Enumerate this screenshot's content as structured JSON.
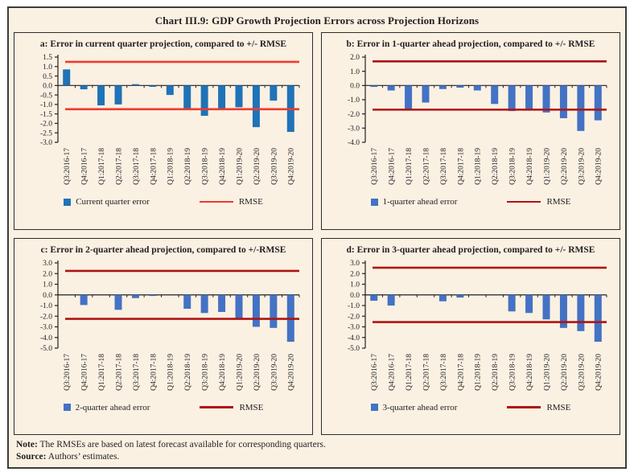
{
  "page_title": "Chart III.9: GDP Growth Projection Errors across Projection Horizons",
  "note": {
    "label": "Note:",
    "text": " The RMSEs are based on latest forecast available for corresponding quarters."
  },
  "source": {
    "label": "Source:",
    "text": " Authors’ estimates."
  },
  "colors": {
    "background": "#faf1e3",
    "outer_border": "#3c3c3c",
    "panel_border": "#2c2c2c",
    "text": "#231f20",
    "axis": "#231f20"
  },
  "chart_data": [
    {
      "type": "bar",
      "panel": "a",
      "title": "a: Error in current quarter projection, compared to +/- RMSE",
      "categories": [
        "Q3:2016-17",
        "Q4:2016-17",
        "Q1:2017-18",
        "Q2:2017-18",
        "Q3:2017-18",
        "Q4:2017-18",
        "Q1:2018-19",
        "Q2:2018-19",
        "Q3:2018-19",
        "Q4:2018-19",
        "Q1:2019-20",
        "Q2:2019-20",
        "Q3:2019-20",
        "Q4:2019-20"
      ],
      "values": [
        0.85,
        -0.2,
        -1.05,
        -1.0,
        0.07,
        -0.07,
        -0.5,
        -1.3,
        -1.6,
        -1.25,
        -1.15,
        -2.2,
        -0.8,
        -2.45
      ],
      "rmse": 1.25,
      "ylim": [
        -3.0,
        1.5
      ],
      "ytick_step": 0.5,
      "legend_error": "Current quarter error",
      "legend_rmse": "RMSE",
      "bar_color": "#1f73b7",
      "rmse_color": "#ee3b2d",
      "grid": false,
      "legend_position": "bottom"
    },
    {
      "type": "bar",
      "panel": "b",
      "title": "b: Error in 1-quarter ahead projection, compared to +/- RMSE",
      "categories": [
        "Q3:2016-17",
        "Q4:2016-17",
        "Q1:2017-18",
        "Q2:2017-18",
        "Q3:2017-18",
        "Q4:2017-18",
        "Q1:2018-19",
        "Q2:2018-19",
        "Q3:2018-19",
        "Q4:2018-19",
        "Q1:2019-20",
        "Q2:2019-20",
        "Q3:2019-20",
        "Q4:2019-20"
      ],
      "values": [
        -0.1,
        -0.35,
        -1.65,
        -1.2,
        -0.25,
        -0.15,
        -0.35,
        -1.3,
        -1.8,
        -1.7,
        -1.9,
        -2.3,
        -3.2,
        -2.45
      ],
      "rmse": 1.7,
      "ylim": [
        -4.0,
        2.0
      ],
      "ytick_step": 1.0,
      "legend_error": "1-quarter ahead error",
      "legend_rmse": "RMSE",
      "bar_color": "#4472c4",
      "rmse_color": "#ae1413",
      "grid": false,
      "legend_position": "bottom"
    },
    {
      "type": "bar",
      "panel": "c",
      "title": "c: Error in 2-quarter ahead projection, compared to +/-RMSE",
      "categories": [
        "Q3:2016-17",
        "Q4:2016-17",
        "Q1:2017-18",
        "Q2:2017-18",
        "Q3:2017-18",
        "Q4:2017-18",
        "Q1:2018-19",
        "Q2:2018-19",
        "Q3:2018-19",
        "Q4:2018-19",
        "Q1:2019-20",
        "Q2:2019-20",
        "Q3:2019-20",
        "Q4:2019-20"
      ],
      "values": [
        0,
        -0.95,
        0,
        -1.4,
        -0.3,
        -0.1,
        0,
        -1.3,
        -1.7,
        -1.6,
        -2.2,
        -3.0,
        -3.1,
        -4.4
      ],
      "rmse": 2.25,
      "ylim": [
        -5.0,
        3.0
      ],
      "ytick_step": 1.0,
      "legend_error": "2-quarter ahead error",
      "legend_rmse": "RMSE",
      "bar_color": "#4472c4",
      "rmse_color": "#ae1413",
      "grid": false,
      "legend_position": "bottom"
    },
    {
      "type": "bar",
      "panel": "d",
      "title": "d: Error in 3-quarter ahead projection, compared to +/- RMSE",
      "categories": [
        "Q3:2016-17",
        "Q4:2016-17",
        "Q1:2017-18",
        "Q2:2017-18",
        "Q3:2017-18",
        "Q4:2017-18",
        "Q1:2018-19",
        "Q2:2018-19",
        "Q3:2018-19",
        "Q4:2018-19",
        "Q1:2019-20",
        "Q2:2019-20",
        "Q3:2019-20",
        "Q4:2019-20"
      ],
      "values": [
        -0.55,
        -1.0,
        0,
        0,
        -0.6,
        -0.25,
        0,
        0,
        -1.55,
        -1.7,
        -2.3,
        -3.1,
        -3.4,
        -4.4
      ],
      "rmse": 2.55,
      "ylim": [
        -5.0,
        3.0
      ],
      "ytick_step": 1.0,
      "legend_error": "3-quarter ahead error",
      "legend_rmse": "RMSE",
      "bar_color": "#4472c4",
      "rmse_color": "#ae1413",
      "grid": false,
      "legend_position": "bottom"
    }
  ]
}
